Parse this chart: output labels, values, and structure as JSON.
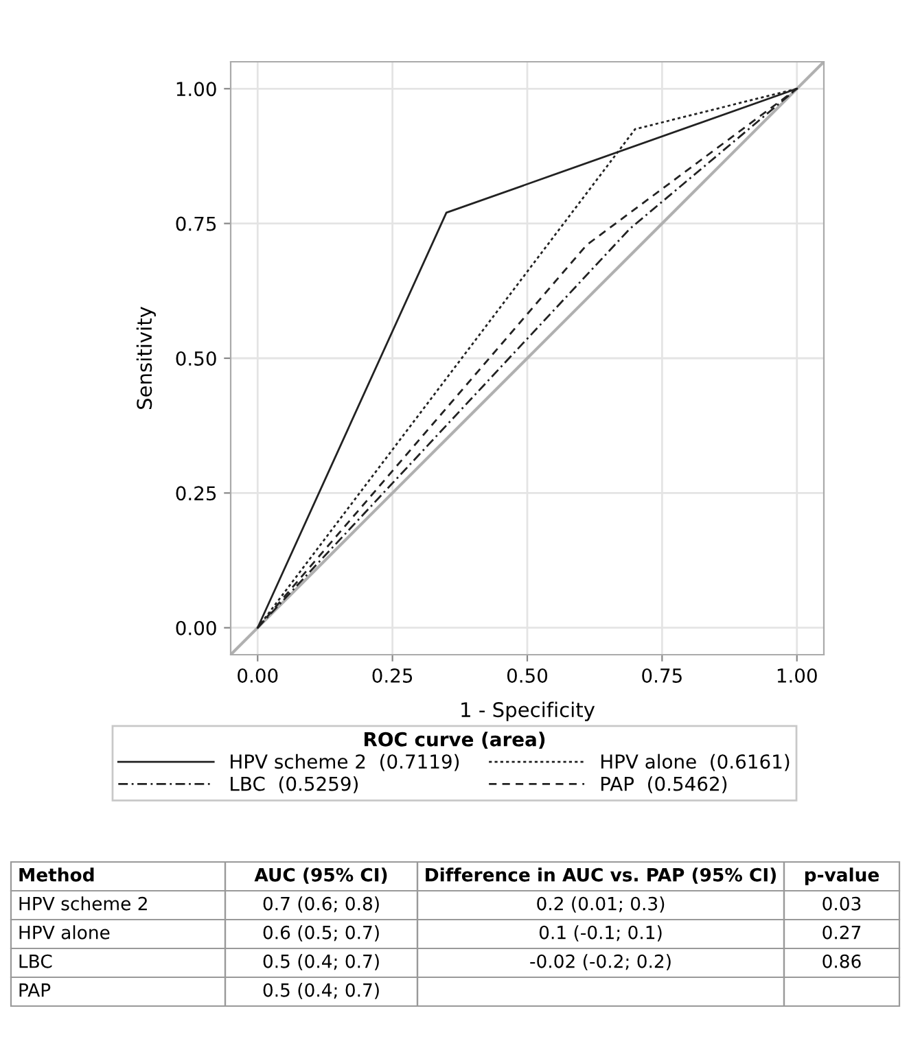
{
  "chart_data": {
    "type": "line",
    "xlabel": "1 - Specificity",
    "ylabel": "Sensitivity",
    "legend_title": "ROC curve (area)",
    "legend": "bottom",
    "grid": true,
    "xlim": [
      -0.05,
      1.05
    ],
    "ylim": [
      -0.05,
      1.05
    ],
    "xticks": [
      {
        "value": 0,
        "label": "0.00"
      },
      {
        "value": 0.25,
        "label": "0.25"
      },
      {
        "value": 0.5,
        "label": "0.50"
      },
      {
        "value": 0.75,
        "label": "0.75"
      },
      {
        "value": 1,
        "label": "1.00"
      }
    ],
    "yticks": [
      {
        "value": 0,
        "label": "0.00"
      },
      {
        "value": 0.25,
        "label": "0.25"
      },
      {
        "value": 0.5,
        "label": "0.50"
      },
      {
        "value": 0.75,
        "label": "0.75"
      },
      {
        "value": 1,
        "label": "1.00"
      }
    ],
    "series": [
      {
        "color": "#b0b0b0",
        "line_style": "solid",
        "x": [
          -0.05,
          1.05
        ],
        "values": [
          -0.05,
          1.05
        ]
      },
      {
        "name": "HPV scheme 2  (0.7119)",
        "color": "#222222",
        "line_style": "solid",
        "x": [
          0,
          0.35,
          1
        ],
        "values": [
          0,
          0.77,
          1
        ]
      },
      {
        "name": "HPV alone  (0.6161)",
        "color": "#222222",
        "line_style": "dotted",
        "x": [
          0,
          0.7,
          1
        ],
        "values": [
          0,
          0.925,
          1
        ]
      },
      {
        "name": "LBC  (0.5259)",
        "color": "#222222",
        "line_style": "dashdot",
        "x": [
          0,
          0.69,
          1
        ],
        "values": [
          0,
          0.74,
          1
        ]
      },
      {
        "name": "PAP  (0.5462)",
        "color": "#222222",
        "line_style": "dashed",
        "x": [
          0,
          0.61,
          1
        ],
        "values": [
          0,
          0.71,
          1
        ]
      }
    ],
    "annotations": [
      "Method",
      "AUC (95% CI)",
      "Difference in AUC vs. PAP (95% CI)",
      "p-value",
      "HPV scheme 2",
      "0.7 (0.6; 0.8)",
      "0.2 (0.01; 0.3)",
      "0.03",
      "HPV alone",
      "0.6 (0.5; 0.7)",
      "0.1 (-0.1; 0.1)",
      "0.27",
      "LBC",
      "0.5 (0.4; 0.7)",
      "-0.02 (-0.2; 0.2)",
      "0.86",
      "PAP",
      "0.5 (0.4; 0.7)"
    ]
  }
}
